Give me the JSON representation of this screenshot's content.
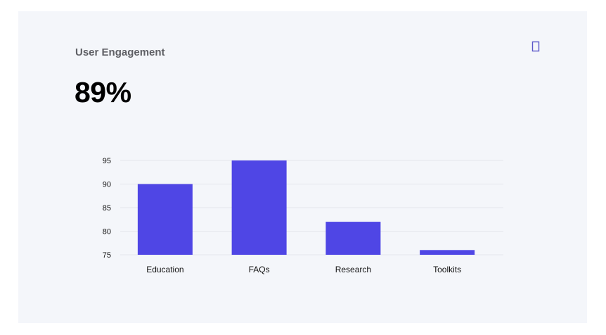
{
  "card": {
    "title": "User Engagement",
    "metric": "89%",
    "icon": "info-icon"
  },
  "colors": {
    "bar": "#4f46e5",
    "grid": "#e4e6ec",
    "card_bg": "#f4f6fa",
    "icon": "#5b57c9"
  },
  "chart_data": {
    "type": "bar",
    "categories": [
      "Education",
      "FAQs",
      "Research",
      "Toolkits"
    ],
    "values": [
      90,
      95,
      82,
      76
    ],
    "ylim": [
      75,
      95
    ],
    "yticks": [
      75,
      80,
      85,
      90,
      95
    ],
    "grid": true,
    "legend": "none"
  }
}
